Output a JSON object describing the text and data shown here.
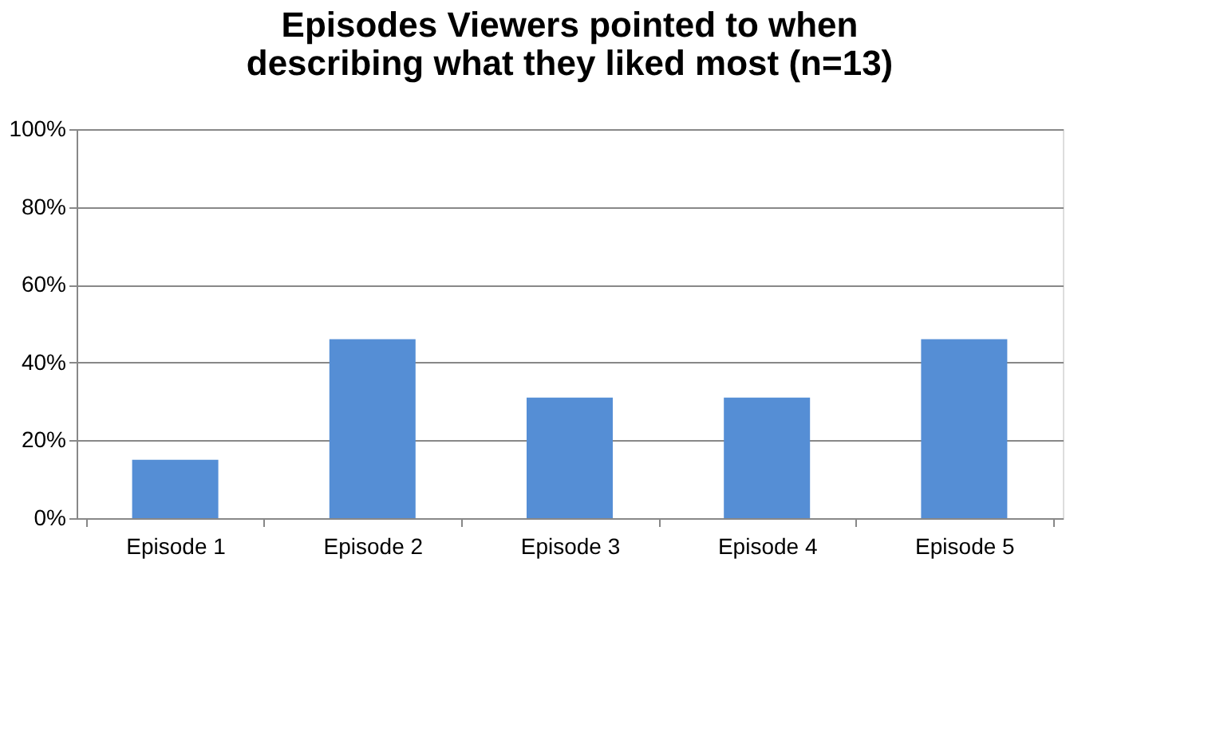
{
  "chart_data": {
    "type": "bar",
    "title": "Episodes Viewers pointed to when describing what they liked most (n=13)",
    "categories": [
      "Episode 1",
      "Episode 2",
      "Episode 3",
      "Episode 4",
      "Episode 5"
    ],
    "values": [
      15,
      46,
      31,
      31,
      46
    ],
    "color": "#558ed5",
    "ylim": [
      0,
      100
    ],
    "yticks": [
      {
        "value": 0,
        "label": "0%"
      },
      {
        "value": 20,
        "label": "20%"
      },
      {
        "value": 40,
        "label": "40%"
      },
      {
        "value": 60,
        "label": "60%"
      },
      {
        "value": 80,
        "label": "80%"
      },
      {
        "value": 100,
        "label": "100%"
      }
    ],
    "grid": "y"
  }
}
